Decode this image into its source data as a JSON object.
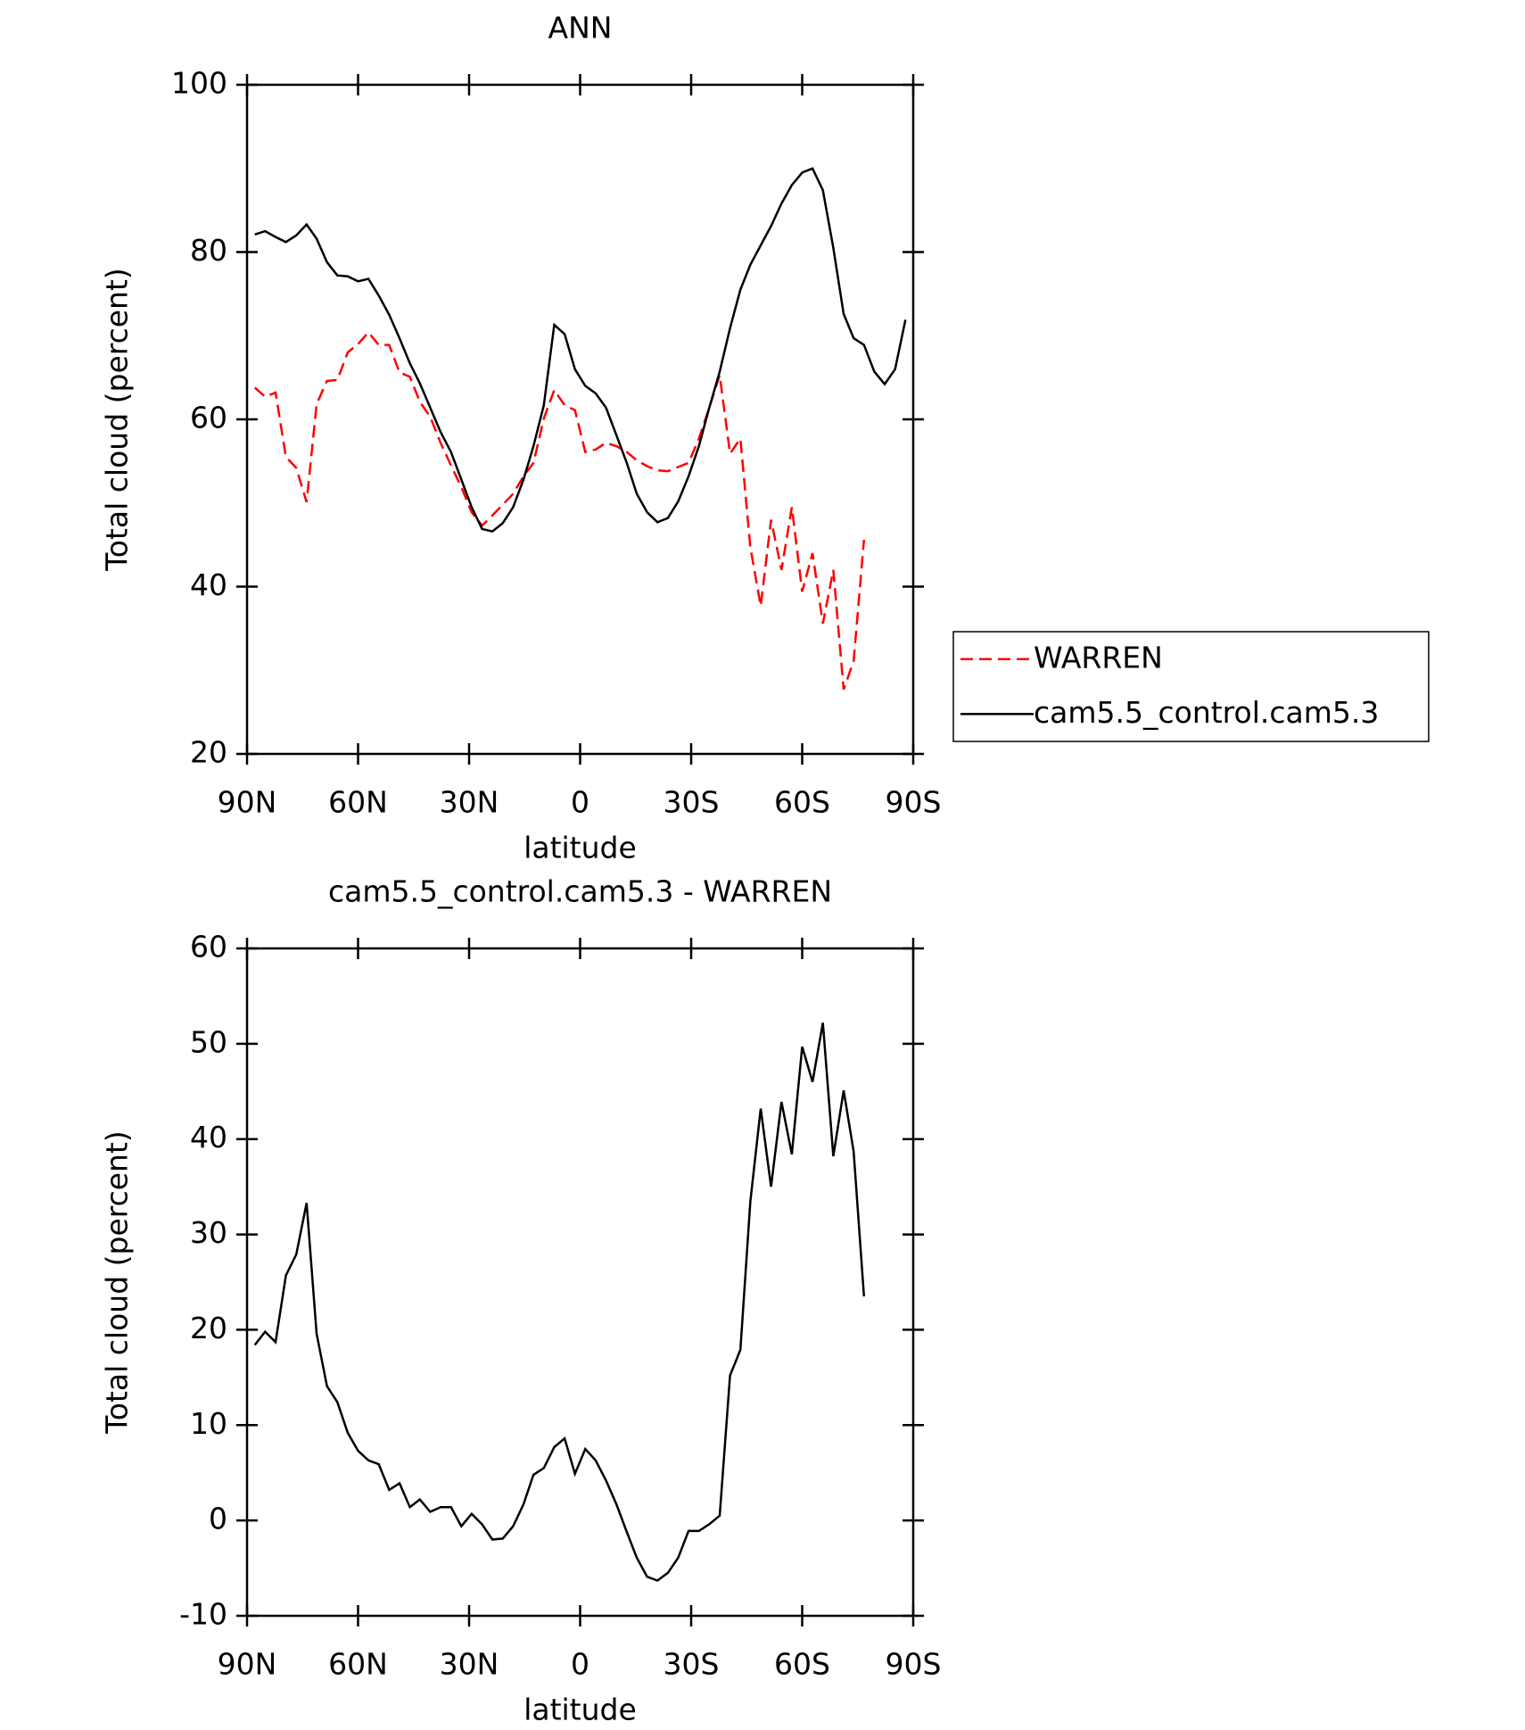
{
  "chart_data": [
    {
      "type": "line",
      "title": "ANN",
      "xlabel": "latitude",
      "ylabel": "Total cloud (percent)",
      "x": [
        87.9,
        85.1,
        82.3,
        79.5,
        76.7,
        73.9,
        71.2,
        68.4,
        65.6,
        62.8,
        60.0,
        57.2,
        54.4,
        51.6,
        48.8,
        46.0,
        43.3,
        40.5,
        37.7,
        34.9,
        32.1,
        29.3,
        26.5,
        23.7,
        20.9,
        18.1,
        15.3,
        12.6,
        9.8,
        7.0,
        4.2,
        1.4,
        -1.4,
        -4.2,
        -7.0,
        -9.8,
        -12.6,
        -15.3,
        -18.1,
        -20.9,
        -23.7,
        -26.5,
        -29.3,
        -32.1,
        -34.9,
        -37.7,
        -40.5,
        -43.3,
        -46.0,
        -48.8,
        -51.6,
        -54.4,
        -57.2,
        -60.0,
        -62.8,
        -65.6,
        -68.4,
        -71.2,
        -73.9,
        -76.7,
        -79.5,
        -82.3,
        -85.1,
        -87.9
      ],
      "series": [
        {
          "name": "WARREN",
          "color": "#ff0000",
          "dashed": true,
          "values": [
            63.8,
            62.7,
            63.2,
            55.5,
            54.2,
            50.1,
            61.8,
            64.6,
            64.7,
            68.0,
            69.0,
            70.4,
            68.9,
            68.9,
            65.6,
            65.1,
            62.1,
            60.3,
            57.2,
            54.5,
            51.9,
            48.9,
            47.3,
            48.5,
            49.8,
            51.1,
            53.2,
            54.8,
            60.1,
            63.5,
            61.7,
            61.1,
            56.1,
            56.4,
            57.2,
            56.8,
            56.1,
            55.1,
            54.4,
            53.9,
            53.8,
            54.3,
            54.8,
            57.7,
            61.4,
            65.3,
            55.9,
            57.7,
            44.7,
            37.7,
            48.0,
            42.0,
            49.5,
            39.4,
            44.0,
            35.6,
            42.0,
            27.7,
            31.1,
            45.6,
            null,
            null,
            null,
            null
          ]
        },
        {
          "name": "cam5.5_control.cam5.3",
          "color": "#000000",
          "dashed": false,
          "values": [
            82.1,
            82.5,
            81.8,
            81.2,
            82.0,
            83.3,
            81.6,
            78.8,
            77.2,
            77.1,
            76.5,
            76.8,
            74.8,
            72.5,
            69.7,
            66.7,
            64.3,
            61.4,
            58.5,
            56.1,
            52.8,
            49.5,
            46.9,
            46.6,
            47.6,
            49.5,
            52.8,
            56.8,
            61.7,
            71.3,
            70.2,
            66.0,
            64.0,
            63.1,
            61.4,
            58.1,
            54.8,
            51.1,
            48.9,
            47.7,
            48.2,
            50.2,
            53.2,
            56.8,
            61.4,
            65.7,
            70.9,
            75.5,
            78.5,
            80.8,
            83.1,
            85.8,
            88.0,
            89.5,
            90.0,
            87.4,
            80.5,
            72.6,
            69.7,
            68.9,
            65.7,
            64.2,
            66.0,
            71.9
          ]
        }
      ],
      "xlim": [
        90,
        -90
      ],
      "xticks": [
        {
          "value": 90,
          "label": "90N"
        },
        {
          "value": 60,
          "label": "60N"
        },
        {
          "value": 30,
          "label": "30N"
        },
        0,
        {
          "value": -30,
          "label": "30S"
        },
        {
          "value": -60,
          "label": "60S"
        },
        {
          "value": -90,
          "label": "90S"
        }
      ],
      "ylim": [
        20,
        100
      ],
      "yticks": [
        20,
        40,
        60,
        80,
        100
      ],
      "legend": "right"
    },
    {
      "type": "line",
      "title": "cam5.5_control.cam5.3 - WARREN",
      "xlabel": "latitude",
      "ylabel": "Total cloud (percent)",
      "x": [
        87.9,
        85.1,
        82.3,
        79.5,
        76.7,
        73.9,
        71.2,
        68.4,
        65.6,
        62.8,
        60.0,
        57.2,
        54.4,
        51.6,
        48.8,
        46.0,
        43.3,
        40.5,
        37.7,
        34.9,
        32.1,
        29.3,
        26.5,
        23.7,
        20.9,
        18.1,
        15.3,
        12.6,
        9.8,
        7.0,
        4.2,
        1.4,
        -1.4,
        -4.2,
        -7.0,
        -9.8,
        -12.6,
        -15.3,
        -18.1,
        -20.9,
        -23.7,
        -26.5,
        -29.3,
        -32.1,
        -34.9,
        -37.7,
        -40.5,
        -43.3,
        -46.0,
        -48.8,
        -51.6,
        -54.4,
        -57.2,
        -60.0,
        -62.8,
        -65.6,
        -68.4,
        -71.2,
        -73.9,
        -76.7,
        -79.5,
        -82.3,
        -85.1,
        -87.9
      ],
      "series": [
        {
          "color": "#000000",
          "dashed": false,
          "values": [
            18.4,
            19.8,
            18.7,
            25.7,
            27.9,
            33.3,
            19.6,
            14.1,
            12.4,
            9.2,
            7.3,
            6.3,
            5.9,
            3.2,
            3.9,
            1.4,
            2.2,
            0.9,
            1.4,
            1.4,
            -0.6,
            0.7,
            -0.4,
            -2.0,
            -1.9,
            -0.6,
            1.7,
            4.8,
            5.5,
            7.7,
            8.6,
            4.9,
            7.5,
            6.3,
            4.2,
            1.7,
            -1.2,
            -3.9,
            -5.9,
            -6.3,
            -5.5,
            -3.9,
            -1.1,
            -1.1,
            -0.4,
            0.5,
            15.2,
            17.9,
            33.5,
            43.2,
            35.0,
            43.9,
            38.4,
            49.7,
            46.0,
            52.2,
            38.2,
            45.1,
            38.7,
            23.5,
            null,
            null,
            null,
            null
          ]
        }
      ],
      "xlim": [
        90,
        -90
      ],
      "xticks": [
        {
          "value": 90,
          "label": "90N"
        },
        {
          "value": 60,
          "label": "60N"
        },
        {
          "value": 30,
          "label": "30N"
        },
        0,
        {
          "value": -30,
          "label": "30S"
        },
        {
          "value": -60,
          "label": "60S"
        },
        {
          "value": -90,
          "label": "90S"
        }
      ],
      "ylim": [
        -10,
        60
      ],
      "yticks": [
        -10,
        0,
        10,
        20,
        30,
        40,
        50,
        60
      ]
    }
  ]
}
